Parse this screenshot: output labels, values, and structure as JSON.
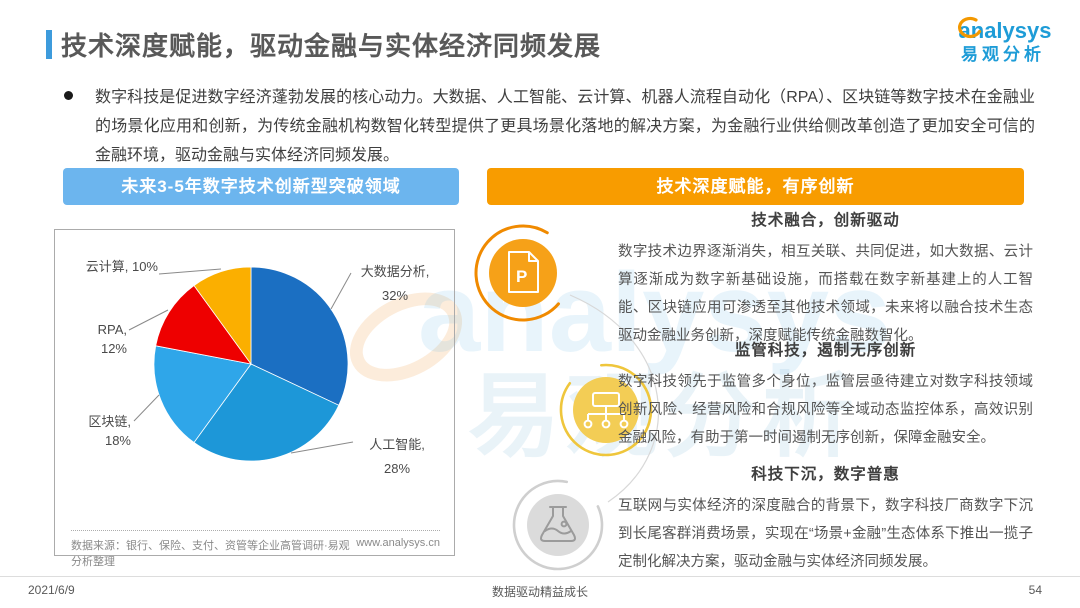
{
  "header": {
    "title": "技术深度赋能，驱动金融与实体经济同频发展",
    "accent_color": "#3D9BDC"
  },
  "logo": {
    "brand": "analysys",
    "brand_cn": "易观分析"
  },
  "intro": {
    "text": "数字科技是促进数字经济蓬勃发展的核心动力。大数据、人工智能、云计算、机器人流程自动化（RPA）、区块链等数字技术在金融业的场景化应用和创新，为传统金融机构数智化转型提供了更具场景化落地的解决方案，为金融行业供给侧改革创造了更加安全可信的金融环境，驱动金融与实体经济同频发展。"
  },
  "banners": {
    "left": {
      "label": "未来3-5年数字技术创新型突破领域",
      "color": "#6CB5EE"
    },
    "right": {
      "label": "技术深度赋能，有序创新",
      "color": "#F89C00"
    }
  },
  "chart_data": {
    "type": "pie",
    "title": "未来3-5年数字技术创新型突破领域",
    "labels": [
      "大数据分析",
      "人工智能",
      "区块链",
      "RPA",
      "云计算"
    ],
    "values": [
      32,
      28,
      18,
      12,
      10
    ],
    "unit": "%",
    "colors": [
      "#1B6FC2",
      "#1D97D8",
      "#2FA6E9",
      "#EE0000",
      "#FBAF00"
    ],
    "start_angle": "12点钟方向",
    "direction": "clockwise",
    "source": "数据来源：银行、保险、支付、资管等企业高管调研·易观分析整理",
    "website": "www.analysys.cn"
  },
  "pie_labels": {
    "big_data": {
      "line1": "大数据分析,",
      "line2": "32%"
    },
    "ai": {
      "line1": "人工智能,",
      "line2": "28%"
    },
    "blockchain": "区块链, 18%",
    "rpa": "RPA, 12%",
    "cloud": "云计算, 10%"
  },
  "sections": [
    {
      "heading": "技术融合，创新驱动",
      "body": "数字技术边界逐渐消失，相互关联、共同促进，如大数据、云计算逐渐成为数字新基础设施，而搭载在数字新基建上的人工智能、区块链应用可渗透至其他技术领域，未来将以融合技术生态驱动金融业务创新，深度赋能传统金融数智化。",
      "icon": "document-p-icon",
      "bubble_color": "#F6A118",
      "ring_color": "#F08A00"
    },
    {
      "heading": "监管科技，遏制无序创新",
      "body": "数字科技领先于监管多个身位，监管层亟待建立对数字科技领域创新风险、经营风险和合规风险等全域动态监控体系，高效识别金融风险，有助于第一时间遏制无序创新，保障金融安全。",
      "icon": "hierarchy-icon",
      "bubble_color": "#F3CD55",
      "ring_color": "#EFC63C"
    },
    {
      "heading": "科技下沉，数字普惠",
      "body": "互联网与实体经济的深度融合的背景下，数字科技厂商数字下沉到长尾客群消费场景，实现在“场景+金融”生态体系下推出一揽子定制化解决方案，驱动金融与实体经济同频发展。",
      "icon": "flask-icon",
      "bubble_color": "#DBDBDB",
      "ring_color": "#CFCFCF"
    }
  ],
  "watermark": {
    "text_en": "analysys",
    "text_cn": "易观分析"
  },
  "footer": {
    "date": "2021/6/9",
    "slogan": "数据驱动精益成长",
    "page_number": "54"
  }
}
